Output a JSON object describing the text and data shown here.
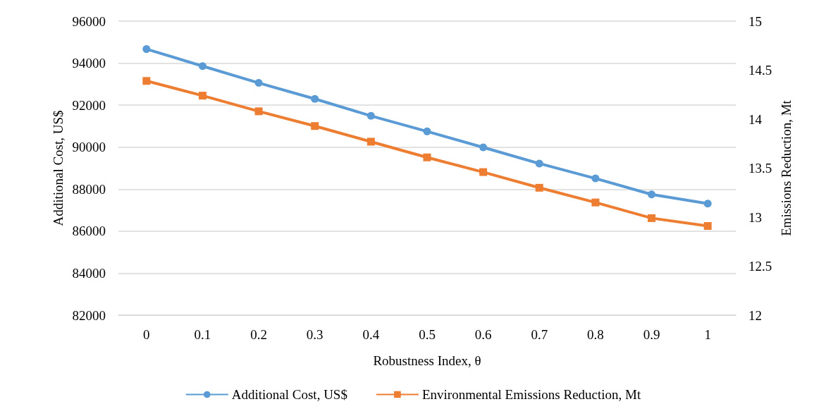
{
  "chart_data": {
    "type": "line",
    "xlabel": "Robustness Index, θ",
    "ylabel": "Additional Cost, US$",
    "y2label": "Emissions Reduction, Mt",
    "categories": [
      "0",
      "0.1",
      "0.2",
      "0.3",
      "0.4",
      "0.5",
      "0.6",
      "0.7",
      "0.8",
      "0.9",
      "1"
    ],
    "series": [
      {
        "name": "Additional Cost, US$",
        "color": "#5b9bd5",
        "marker": "circle",
        "values": [
          94670,
          93860,
          93060,
          92300,
          91490,
          90750,
          89990,
          89220,
          88510,
          87750,
          87310
        ]
      },
      {
        "name": "Environmental Emissions Reduction, Mt",
        "color": "#ed7d31",
        "marker": "square",
        "axis": "y2",
        "values": [
          14.39,
          14.24,
          14.08,
          13.93,
          13.77,
          13.61,
          13.46,
          13.3,
          13.15,
          12.99,
          12.91
        ]
      }
    ],
    "ylim": [
      82000,
      96000
    ],
    "yticks": [
      82000,
      84000,
      86000,
      88000,
      90000,
      92000,
      94000,
      96000
    ],
    "y2lim": [
      12,
      15
    ],
    "y2ticks": [
      12,
      12.5,
      13,
      13.5,
      14,
      14.5,
      15
    ],
    "grid": "y",
    "legend": "bottom",
    "line_style": "solid"
  }
}
